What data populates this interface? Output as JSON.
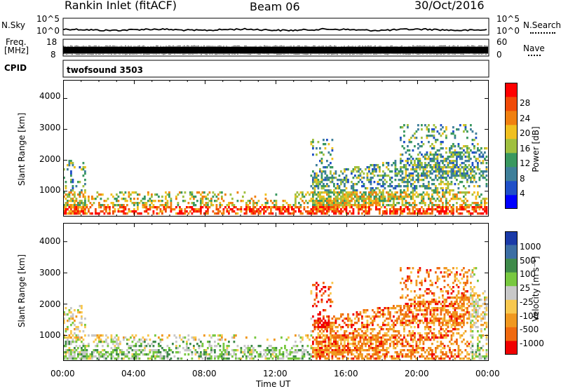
{
  "header": {
    "station": "Rankin Inlet (fitACF)",
    "beam": "Beam 06",
    "date": "30/Oct/2016"
  },
  "strips": {
    "nsky_label": "N.Sky",
    "nsky_ticks": [
      "10^5",
      "10^0"
    ],
    "nsearch_label": "N.Search",
    "nsearch_ticks": [
      "10^5",
      "10^0"
    ],
    "freq_label_1": "Freq.",
    "freq_label_2": "[MHz]",
    "freq_ticks": [
      "18",
      "8"
    ],
    "nave_label": "Nave",
    "nave_ticks": [
      "60",
      "0"
    ],
    "cpid_label": "CPID",
    "cpid_value": "twofsound 3503"
  },
  "chart_data": [
    {
      "type": "heatmap",
      "quantity": "power",
      "ylabel": "Slant Range [km]",
      "ylim": [
        180,
        4600
      ],
      "yticks": [
        "1000",
        "2000",
        "3000",
        "4000"
      ],
      "xlim": [
        "00:00",
        "24:00"
      ],
      "colorbar": {
        "label": "Power [dB]",
        "ticks": [
          "4",
          "8",
          "12",
          "16",
          "20",
          "24",
          "28"
        ],
        "colors": [
          "#0000ff",
          "#2050c8",
          "#3f7f9a",
          "#3a9860",
          "#a0c040",
          "#f0c020",
          "#f08010",
          "#f04a08",
          "#ff0000"
        ]
      }
    },
    {
      "type": "heatmap",
      "quantity": "velocity",
      "ylabel": "Slant Range [km]",
      "ylim": [
        180,
        4600
      ],
      "yticks": [
        "1000",
        "2000",
        "3000",
        "4000"
      ],
      "xlim": [
        "00:00",
        "24:00"
      ],
      "xticks": [
        "00:00",
        "04:00",
        "08:00",
        "12:00",
        "16:00",
        "20:00",
        "00:00"
      ],
      "xlabel": "Time UT",
      "colorbar": {
        "label": "Velocity [m s⁻¹]",
        "ticks": [
          "1000",
          "500",
          "100",
          "25",
          "-25",
          "-100",
          "-500",
          "-1000"
        ],
        "colors": [
          "#1a3aa8",
          "#3c6ea4",
          "#3f8a4a",
          "#78c840",
          "#c8c8c8",
          "#f8c850",
          "#f09820",
          "#f06a10",
          "#f00000"
        ]
      }
    }
  ]
}
